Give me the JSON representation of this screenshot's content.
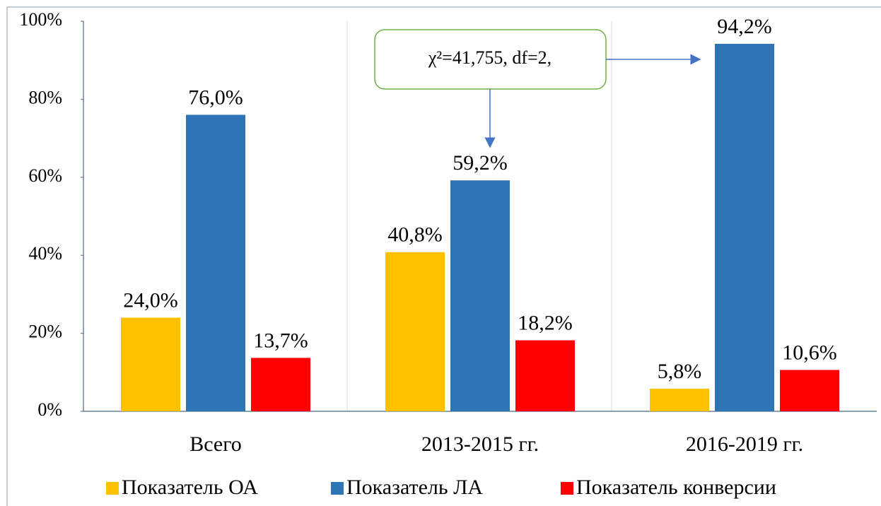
{
  "chart_data": {
    "type": "bar",
    "categories": [
      "Всего",
      "2013-2015 гг.",
      "2016-2019 гг."
    ],
    "series": [
      {
        "name": "Показатель ОА",
        "color": "#ffc000",
        "values": [
          24.0,
          40.8,
          5.8
        ],
        "value_labels": [
          "24,0%",
          "40,8%",
          "5,8%"
        ]
      },
      {
        "name": "Показатель ЛА",
        "color": "#2e75b6",
        "values": [
          76.0,
          59.2,
          94.2
        ],
        "value_labels": [
          "76,0%",
          "59,2%",
          "94,2%"
        ]
      },
      {
        "name": "Показатель конверсии",
        "color": "#ff0000",
        "values": [
          13.7,
          18.2,
          10.6
        ],
        "value_labels": [
          "13,7%",
          "18,2%",
          "10,6%"
        ]
      }
    ],
    "ylim": [
      0,
      100
    ],
    "yticks": [
      {
        "value": 0,
        "label": "0%"
      },
      {
        "value": 20,
        "label": "20%"
      },
      {
        "value": 40,
        "label": "40%"
      },
      {
        "value": 60,
        "label": "60%"
      },
      {
        "value": 80,
        "label": "80%"
      },
      {
        "value": 100,
        "label": "100%"
      }
    ],
    "grid": false,
    "legend": "bottom",
    "annotations": [
      "χ²=41,755, df=2,"
    ]
  }
}
